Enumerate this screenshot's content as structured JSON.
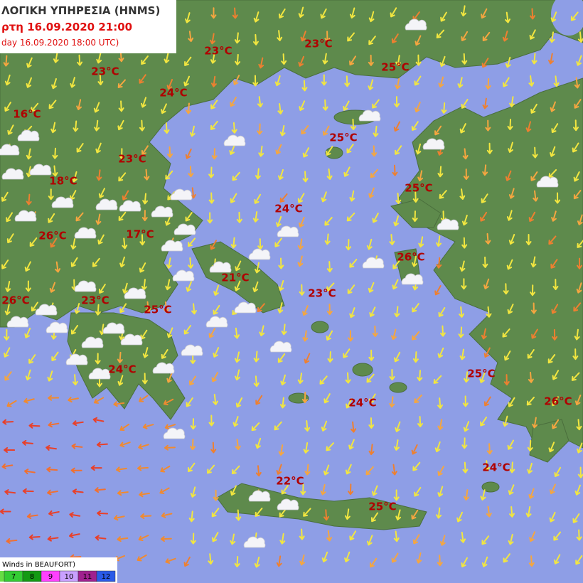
{
  "header": {
    "title": "ΛΟΓΙΚΗ ΥΠΗΡΕΣΙΑ (HNMS)",
    "valid_time": "ρτη 16.09.2020 21:00",
    "run_time": "day 16.09.2020 18:00 UTC)"
  },
  "temperatures": [
    "23°C",
    "23°C",
    "25°C",
    "23°C",
    "24°C",
    "16°C",
    "25°C",
    "23°C",
    "18°C",
    "25°C",
    "24°C",
    "26°C",
    "17°C",
    "26°C",
    "21°C",
    "23°C",
    "26°C",
    "23°C",
    "25°C",
    "24°C",
    "25°C",
    "24°C",
    "26°C",
    "24°C",
    "22°C",
    "25°C"
  ],
  "legend": {
    "title": "Winds in BEAUFORT)",
    "levels": [
      {
        "label": "7",
        "color": "#33cc33"
      },
      {
        "label": "8",
        "color": "#139a13"
      },
      {
        "label": "9",
        "color": "#ff40ff"
      },
      {
        "label": "10",
        "color": "#c9a0ff"
      },
      {
        "label": "11",
        "color": "#a0208f"
      },
      {
        "label": "12",
        "color": "#2a5ae8"
      }
    ]
  }
}
